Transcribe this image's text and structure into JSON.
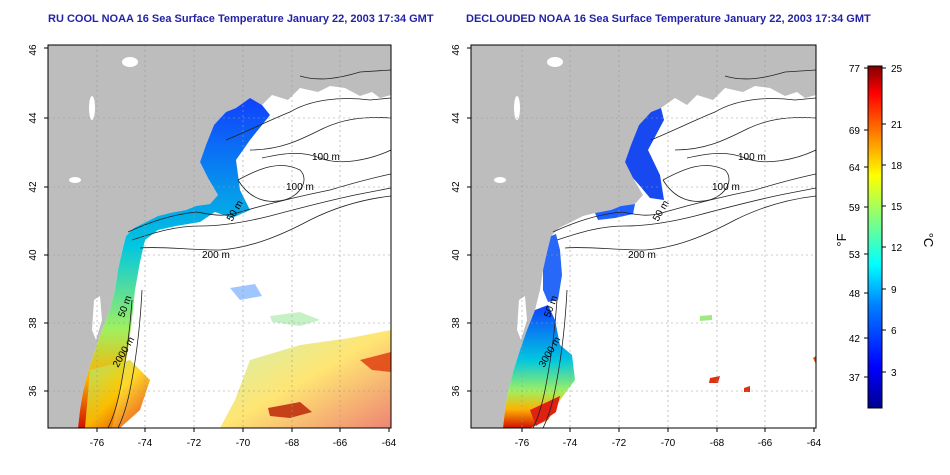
{
  "panels": [
    {
      "title": "RU COOL NOAA 16 Sea Surface Temperature January 22, 2003 17:34 GMT",
      "contour_labels": [
        "100 m",
        "100 m",
        "50 m",
        "200 m",
        "50 m",
        "2000 m"
      ]
    },
    {
      "title": "DECLOUDED NOAA 16 Sea Surface Temperature January 22, 2003 17:34 GMT",
      "contour_labels": [
        "100 m",
        "100 m",
        "50 m",
        "200 m",
        "50 m",
        "3000 m"
      ]
    }
  ],
  "axes": {
    "lon_ticks": [
      "-76",
      "-74",
      "-72",
      "-70",
      "-68",
      "-66",
      "-64"
    ],
    "lat_ticks": [
      "36",
      "38",
      "40",
      "42",
      "44",
      "46"
    ]
  },
  "colorbar": {
    "f_label": "°F",
    "c_label": "°C",
    "f_ticks": [
      "77",
      "69",
      "64",
      "59",
      "53",
      "48",
      "42",
      "37"
    ],
    "c_ticks": [
      "25",
      "21",
      "18",
      "15",
      "12",
      "9",
      "6",
      "3"
    ],
    "colors": [
      "#00008f",
      "#0000ff",
      "#0080ff",
      "#00ffff",
      "#80ff80",
      "#ffff00",
      "#ff8000",
      "#ff0000",
      "#800000"
    ]
  },
  "land_color": "#bdbdbd"
}
